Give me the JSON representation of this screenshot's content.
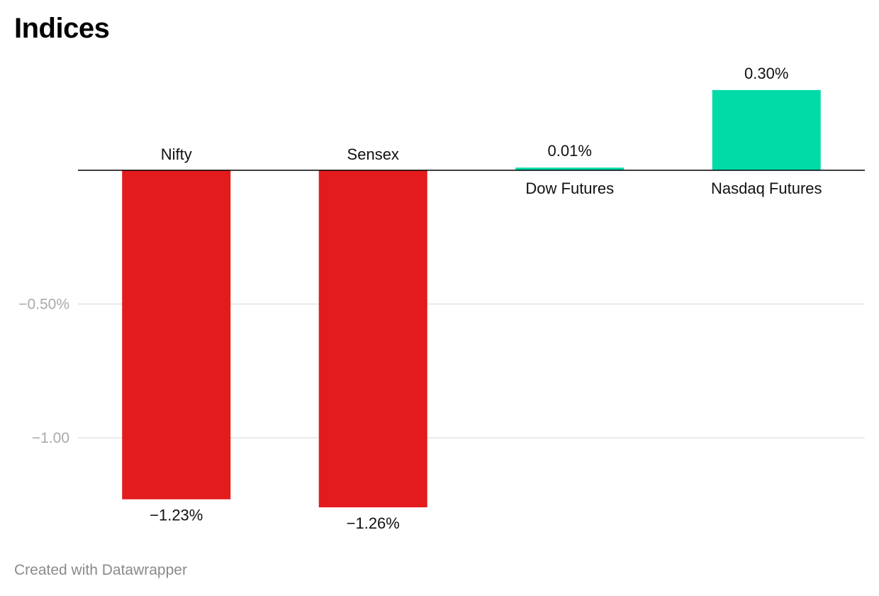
{
  "chart_data": {
    "type": "bar",
    "title": "Indices",
    "xlabel": "",
    "ylabel": "",
    "categories": [
      "Nifty",
      "Sensex",
      "Dow Futures",
      "Nasdaq Futures"
    ],
    "values": [
      -1.23,
      -1.26,
      0.01,
      0.3
    ],
    "value_labels": [
      "−1.23%",
      "−1.26%",
      "0.01%",
      "0.30%"
    ],
    "ylim": [
      -1.35,
      0.35
    ],
    "y_ticks": [
      {
        "value": -0.5,
        "label": "−0.50%"
      },
      {
        "value": -1.0,
        "label": "−1.00"
      }
    ],
    "grid": true,
    "legend": "none"
  },
  "colors": {
    "negative": "#e31b1c",
    "positive": "#00dba8",
    "gridline": "#e3e3e3",
    "baseline": "#000000",
    "tick_label": "#aaaaaa",
    "label": "#111111"
  },
  "footer": {
    "credit": "Created with Datawrapper"
  }
}
